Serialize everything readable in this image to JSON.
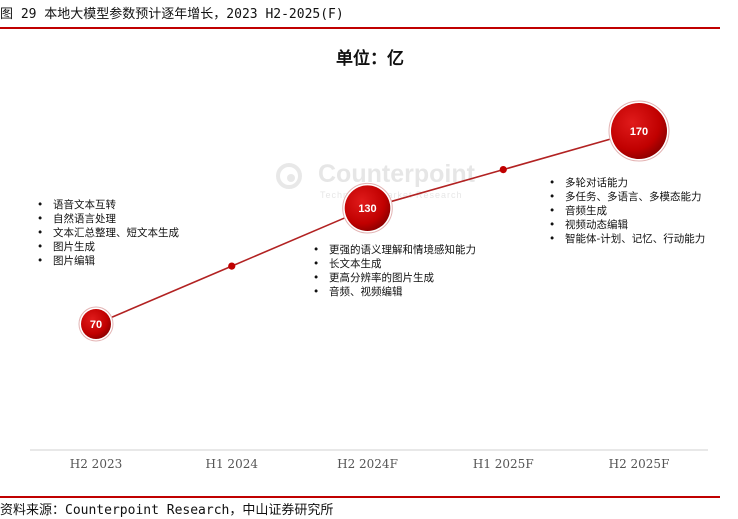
{
  "header": {
    "figure_title": "图 29 本地大模型参数预计逐年增长，2023 H2-2025(F)",
    "unit_label": "单位：亿"
  },
  "watermark": {
    "brand": "Counterpoint",
    "tagline": "Technology Market Research"
  },
  "chart_data": {
    "type": "line",
    "categories": [
      "H2 2023",
      "H1 2024",
      "H2 2024F",
      "H1 2025F",
      "H2 2025F"
    ],
    "series": [
      {
        "values": [
          70,
          100,
          130,
          150,
          170
        ],
        "labeled": [
          true,
          false,
          true,
          false,
          true
        ]
      }
    ],
    "ylim": [
      0,
      190
    ],
    "grid": false,
    "legend": "none",
    "colors": {
      "line": "#b22222",
      "marker": "#c00000",
      "marker_dark": "#7a0000",
      "axis": "#d0d0d0"
    },
    "annotations": [
      {
        "category": "H2 2023",
        "items": [
          "语音文本互转",
          "自然语言处理",
          "文本汇总整理、短文本生成",
          "图片生成",
          "图片编辑"
        ]
      },
      {
        "category": "H2 2024F",
        "items": [
          "更强的语义理解和情境感知能力",
          "长文本生成",
          "更高分辨率的图片生成",
          "音频、视频编辑"
        ]
      },
      {
        "category": "H2 2025F",
        "items": [
          "多轮对话能力",
          "多任务、多语言、多模态能力",
          "音频生成",
          "视频动态编辑",
          "智能体-计划、记忆、行动能力"
        ]
      }
    ]
  },
  "footer": {
    "source": "资料来源：Counterpoint Research，中山证券研究所"
  }
}
